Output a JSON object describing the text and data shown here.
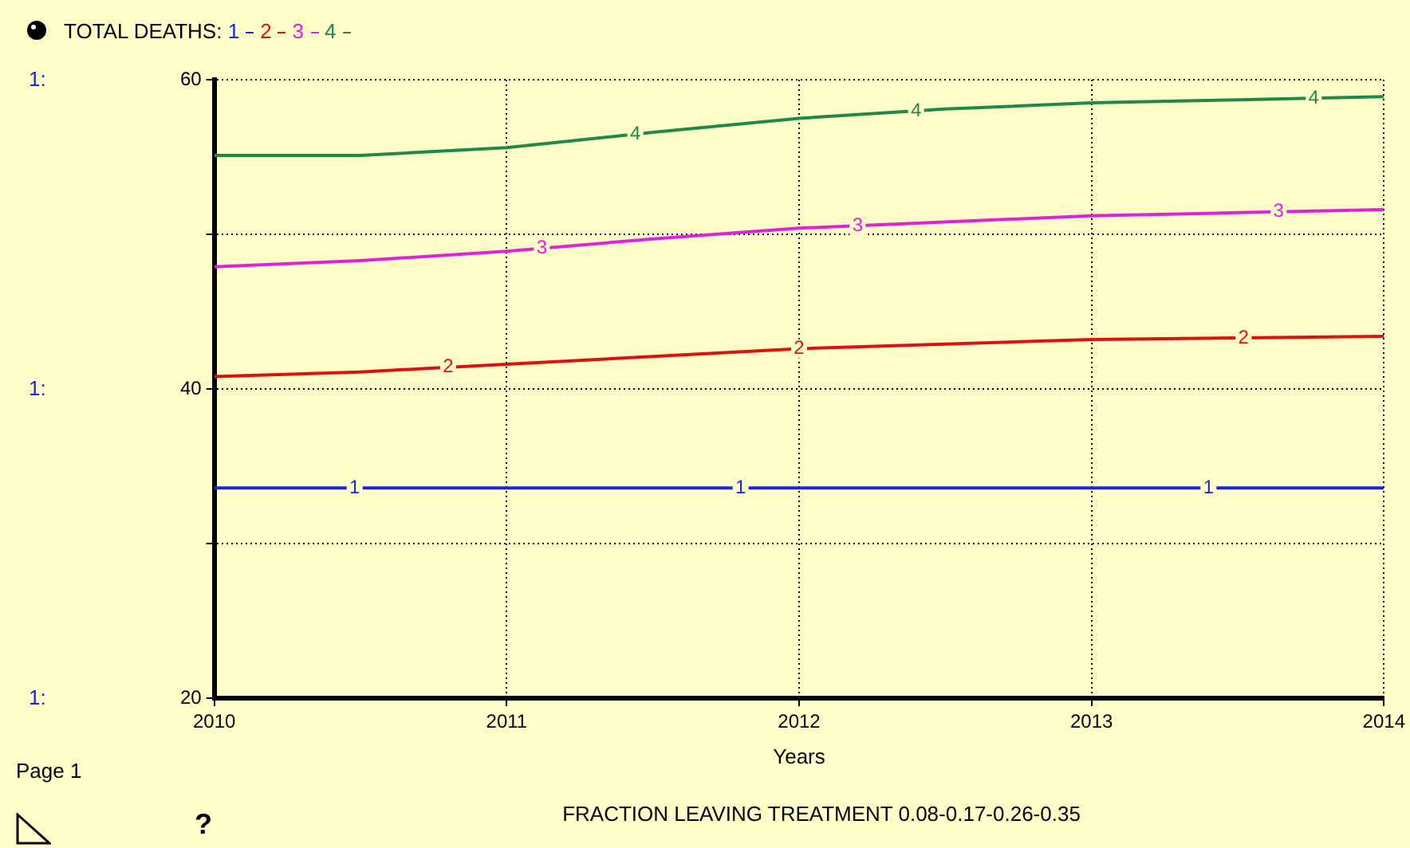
{
  "chart_data": {
    "type": "line",
    "legend_title": "TOTAL DEATHS:",
    "xlabel": "Years",
    "x": [
      2010,
      2010.5,
      2011,
      2011.5,
      2012,
      2012.5,
      2013,
      2013.5,
      2014
    ],
    "series": [
      {
        "name": "1",
        "color": "#1428e0",
        "values": [
          33.6,
          33.6,
          33.6,
          33.6,
          33.6,
          33.6,
          33.6,
          33.6,
          33.6
        ]
      },
      {
        "name": "2",
        "color": "#e01010",
        "values": [
          40.8,
          41.1,
          41.6,
          42.1,
          42.6,
          42.9,
          43.2,
          43.3,
          43.4
        ]
      },
      {
        "name": "3",
        "color": "#e020e0",
        "values": [
          47.9,
          48.3,
          48.9,
          49.7,
          50.4,
          50.8,
          51.2,
          51.4,
          51.6
        ]
      },
      {
        "name": "4",
        "color": "#20884a",
        "values": [
          55.1,
          55.1,
          55.6,
          56.6,
          57.5,
          58.1,
          58.5,
          58.7,
          58.9
        ]
      }
    ],
    "xlim": [
      2010,
      2014
    ],
    "xticks": [
      2010,
      2011,
      2012,
      2013,
      2014
    ],
    "ylim": [
      20,
      60
    ],
    "yticks": [
      20,
      {
        "value": 30,
        "label": null
      },
      40,
      {
        "value": 50,
        "label": null
      },
      60
    ],
    "grid": true,
    "legend": "top left",
    "marker": "none",
    "line_style": "solid",
    "annotations": [
      "1:",
      "1:",
      "1:",
      "Page 1",
      "FRACTION LEAVING TREATMENT 0.08-0.17-0.26-0.35",
      "?"
    ]
  }
}
